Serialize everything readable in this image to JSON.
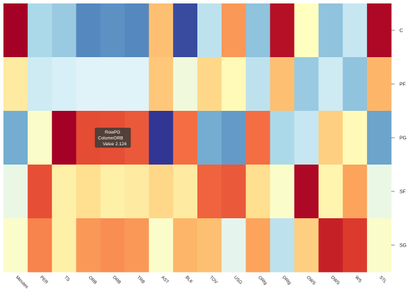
{
  "chart_data": {
    "type": "heatmap",
    "title": "",
    "xlabel": "",
    "ylabel": "",
    "columns": [
      "Minutes",
      "PER",
      "TS",
      "ORB",
      "DRB",
      "TRB",
      "AST",
      "BLK",
      "TOV",
      "USG",
      "ORtg",
      "DRtg",
      "OWS",
      "DWS",
      "WS",
      "STL"
    ],
    "rows": [
      "C",
      "PF",
      "PG",
      "SF",
      "SG"
    ],
    "values": [
      [
        3.0,
        -1.2,
        -1.4,
        -2.2,
        -2.1,
        -2.2,
        1.0,
        -2.8,
        -1.0,
        1.4,
        -1.5,
        2.8,
        0.0,
        -1.5,
        -0.9,
        2.9
      ],
      [
        0.4,
        -0.8,
        -0.7,
        -0.6,
        -0.6,
        -0.6,
        0.9,
        -0.3,
        0.7,
        0.1,
        -1.0,
        1.0,
        -1.4,
        -0.8,
        -1.5,
        1.1
      ],
      [
        -1.8,
        -0.1,
        3.0,
        2.124,
        2.1,
        2.0,
        -3.0,
        1.8,
        -1.8,
        -2.0,
        1.8,
        -1.2,
        -0.9,
        0.8,
        0.1,
        -1.9
      ],
      [
        -0.4,
        2.1,
        0.3,
        0.6,
        0.3,
        0.4,
        0.7,
        0.4,
        1.9,
        2.0,
        0.6,
        -0.1,
        2.9,
        0.2,
        1.3,
        -0.4
      ],
      [
        -0.1,
        1.6,
        0.3,
        1.4,
        1.5,
        1.4,
        -0.1,
        1.1,
        1.0,
        -0.5,
        1.3,
        -1.0,
        0.8,
        2.6,
        2.3,
        -0.1
      ]
    ],
    "color_min": -3.0,
    "color_max": 3.0,
    "color_scale": [
      "#313695",
      "#4575b4",
      "#74add1",
      "#abd9e9",
      "#e0f3f8",
      "#ffffbf",
      "#fee090",
      "#fdae61",
      "#f46d43",
      "#d73027",
      "#a50026"
    ],
    "tooltip": {
      "row_label": "Row",
      "column_label": "Column",
      "value_label": "Value",
      "row": "PG",
      "column": "ORB",
      "value": "2.124"
    }
  }
}
